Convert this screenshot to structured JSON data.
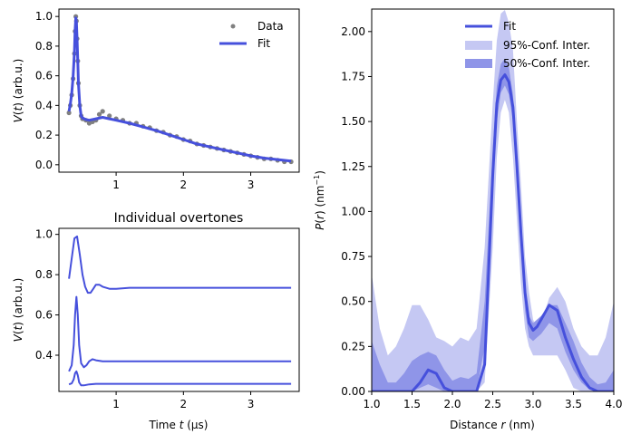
{
  "chart_data": [
    {
      "type": "scatter",
      "title": "",
      "xlabel": "",
      "ylabel": "V(t) (arb.u.)",
      "xlim": [
        0.15,
        3.72
      ],
      "ylim": [
        -0.05,
        1.05
      ],
      "xticks": [
        "1",
        "2",
        "3"
      ],
      "xtick_values": [
        1,
        2,
        3
      ],
      "yticks": [
        "0.0",
        "0.2",
        "0.4",
        "0.6",
        "0.8",
        "1.0"
      ],
      "ytick_values": [
        0.0,
        0.2,
        0.4,
        0.6,
        0.8,
        1.0
      ],
      "legend_position": "top-right",
      "series": [
        {
          "name": "Data",
          "kind": "markers",
          "color": "#808080",
          "x": [
            0.3,
            0.32,
            0.34,
            0.36,
            0.38,
            0.39,
            0.4,
            0.41,
            0.42,
            0.43,
            0.44,
            0.46,
            0.48,
            0.5,
            0.55,
            0.6,
            0.65,
            0.7,
            0.75,
            0.8,
            0.9,
            1.0,
            1.1,
            1.2,
            1.3,
            1.4,
            1.5,
            1.6,
            1.7,
            1.8,
            1.9,
            2.0,
            2.1,
            2.2,
            2.3,
            2.4,
            2.5,
            2.6,
            2.7,
            2.8,
            2.9,
            3.0,
            3.1,
            3.2,
            3.3,
            3.4,
            3.5,
            3.6
          ],
          "y": [
            0.35,
            0.4,
            0.47,
            0.58,
            0.75,
            0.9,
            1.0,
            0.97,
            0.85,
            0.7,
            0.55,
            0.4,
            0.33,
            0.31,
            0.3,
            0.28,
            0.29,
            0.3,
            0.34,
            0.36,
            0.33,
            0.31,
            0.3,
            0.28,
            0.28,
            0.26,
            0.25,
            0.23,
            0.22,
            0.2,
            0.19,
            0.17,
            0.16,
            0.14,
            0.13,
            0.12,
            0.11,
            0.1,
            0.09,
            0.08,
            0.07,
            0.06,
            0.05,
            0.04,
            0.04,
            0.03,
            0.02,
            0.02
          ]
        },
        {
          "name": "Fit",
          "kind": "line",
          "color": "#4650dc",
          "x": [
            0.3,
            0.32,
            0.34,
            0.36,
            0.38,
            0.39,
            0.4,
            0.41,
            0.42,
            0.43,
            0.44,
            0.46,
            0.48,
            0.5,
            0.55,
            0.6,
            0.7,
            0.8,
            0.9,
            1.0,
            1.2,
            1.4,
            1.6,
            1.8,
            2.0,
            2.2,
            2.4,
            2.6,
            2.8,
            3.0,
            3.2,
            3.4,
            3.6
          ],
          "y": [
            0.36,
            0.41,
            0.48,
            0.59,
            0.76,
            0.9,
            0.99,
            0.96,
            0.85,
            0.7,
            0.55,
            0.4,
            0.33,
            0.315,
            0.305,
            0.3,
            0.31,
            0.32,
            0.31,
            0.3,
            0.28,
            0.255,
            0.23,
            0.2,
            0.17,
            0.14,
            0.12,
            0.1,
            0.08,
            0.06,
            0.045,
            0.035,
            0.025
          ]
        }
      ]
    },
    {
      "type": "line",
      "title": "Individual overtones",
      "xlabel": "Time t (µs)",
      "ylabel": "V(t) (arb.u.)",
      "xlim": [
        0.15,
        3.72
      ],
      "ylim": [
        0.22,
        1.03
      ],
      "xticks": [
        "1",
        "2",
        "3"
      ],
      "xtick_values": [
        1,
        2,
        3
      ],
      "yticks": [
        "0.4",
        "0.6",
        "0.8",
        "1.0"
      ],
      "ytick_values": [
        0.4,
        0.6,
        0.8,
        1.0
      ],
      "series": [
        {
          "color": "#4650dc",
          "x": [
            0.3,
            0.34,
            0.38,
            0.42,
            0.46,
            0.5,
            0.54,
            0.58,
            0.62,
            0.66,
            0.7,
            0.75,
            0.8,
            0.9,
            1.0,
            1.2,
            1.5,
            2.0,
            2.5,
            3.0,
            3.6
          ],
          "y": [
            0.78,
            0.88,
            0.98,
            0.99,
            0.9,
            0.8,
            0.74,
            0.71,
            0.71,
            0.73,
            0.75,
            0.75,
            0.74,
            0.73,
            0.73,
            0.735,
            0.735,
            0.735,
            0.735,
            0.735,
            0.735
          ]
        },
        {
          "color": "#4650dc",
          "x": [
            0.3,
            0.34,
            0.37,
            0.39,
            0.41,
            0.43,
            0.45,
            0.48,
            0.52,
            0.56,
            0.6,
            0.65,
            0.7,
            0.8,
            1.0,
            1.5,
            2.0,
            2.5,
            3.0,
            3.6
          ],
          "y": [
            0.32,
            0.35,
            0.45,
            0.6,
            0.69,
            0.6,
            0.45,
            0.36,
            0.34,
            0.35,
            0.37,
            0.38,
            0.375,
            0.37,
            0.37,
            0.37,
            0.37,
            0.37,
            0.37,
            0.37
          ]
        },
        {
          "color": "#4650dc",
          "x": [
            0.3,
            0.34,
            0.37,
            0.39,
            0.41,
            0.43,
            0.45,
            0.48,
            0.52,
            0.6,
            0.7,
            1.0,
            1.5,
            2.0,
            2.5,
            3.0,
            3.6
          ],
          "y": [
            0.255,
            0.26,
            0.28,
            0.31,
            0.32,
            0.3,
            0.265,
            0.25,
            0.25,
            0.255,
            0.258,
            0.258,
            0.258,
            0.258,
            0.258,
            0.258,
            0.258
          ]
        }
      ]
    },
    {
      "type": "area",
      "title": "",
      "xlabel": "Distance r (nm)",
      "ylabel": "P(r) (nm⁻¹)",
      "xlim": [
        1.0,
        4.0
      ],
      "ylim": [
        0.0,
        2.125
      ],
      "xticks": [
        "1.0",
        "1.5",
        "2.0",
        "2.5",
        "3.0",
        "3.5",
        "4.0"
      ],
      "xtick_values": [
        1.0,
        1.5,
        2.0,
        2.5,
        3.0,
        3.5,
        4.0
      ],
      "yticks": [
        "0.00",
        "0.25",
        "0.50",
        "0.75",
        "1.00",
        "1.25",
        "1.50",
        "1.75",
        "2.00"
      ],
      "ytick_values": [
        0.0,
        0.25,
        0.5,
        0.75,
        1.0,
        1.25,
        1.5,
        1.75,
        2.0
      ],
      "legend_position": "top-right",
      "x": [
        1.0,
        1.1,
        1.2,
        1.3,
        1.4,
        1.5,
        1.6,
        1.7,
        1.8,
        1.9,
        2.0,
        2.1,
        2.2,
        2.3,
        2.4,
        2.5,
        2.55,
        2.6,
        2.65,
        2.7,
        2.75,
        2.8,
        2.85,
        2.9,
        2.95,
        3.0,
        3.05,
        3.1,
        3.2,
        3.3,
        3.4,
        3.5,
        3.6,
        3.7,
        3.8,
        3.9,
        4.0
      ],
      "series": [
        {
          "name": "95%-Conf. Inter.",
          "kind": "band",
          "color": "#c5c8f3",
          "lower": [
            0,
            0,
            0,
            0,
            0,
            0,
            0,
            0,
            0,
            0,
            0,
            0,
            0,
            0,
            0.05,
            0.8,
            1.3,
            1.55,
            1.62,
            1.55,
            1.3,
            0.95,
            0.6,
            0.35,
            0.25,
            0.2,
            0.2,
            0.2,
            0.2,
            0.2,
            0.12,
            0.02,
            0,
            0,
            0,
            0,
            0
          ],
          "upper": [
            0.65,
            0.35,
            0.2,
            0.25,
            0.35,
            0.48,
            0.48,
            0.4,
            0.3,
            0.28,
            0.25,
            0.3,
            0.28,
            0.35,
            0.8,
            1.6,
            1.95,
            2.1,
            2.12,
            2.05,
            1.9,
            1.5,
            1.15,
            0.75,
            0.55,
            0.4,
            0.35,
            0.38,
            0.52,
            0.58,
            0.5,
            0.35,
            0.25,
            0.2,
            0.2,
            0.3,
            0.5
          ]
        },
        {
          "name": "50%-Conf. Inter.",
          "kind": "band",
          "color": "#8f95e8",
          "lower": [
            0,
            0,
            0,
            0,
            0,
            0,
            0.02,
            0.04,
            0.02,
            0,
            0,
            0,
            0,
            0,
            0.25,
            1.1,
            1.5,
            1.66,
            1.7,
            1.65,
            1.5,
            1.15,
            0.8,
            0.45,
            0.3,
            0.28,
            0.3,
            0.32,
            0.38,
            0.35,
            0.22,
            0.12,
            0.05,
            0.01,
            0,
            0,
            0
          ],
          "upper": [
            0.28,
            0.15,
            0.05,
            0.05,
            0.1,
            0.17,
            0.2,
            0.22,
            0.2,
            0.12,
            0.06,
            0.08,
            0.07,
            0.1,
            0.5,
            1.35,
            1.7,
            1.82,
            1.85,
            1.8,
            1.65,
            1.3,
            0.95,
            0.6,
            0.42,
            0.38,
            0.4,
            0.42,
            0.48,
            0.48,
            0.38,
            0.28,
            0.16,
            0.08,
            0.04,
            0.05,
            0.12
          ]
        },
        {
          "name": "Fit",
          "kind": "line",
          "color": "#4650dc",
          "y": [
            0,
            0,
            0,
            0,
            0,
            0,
            0.05,
            0.12,
            0.1,
            0.02,
            0,
            0,
            0,
            0,
            0.15,
            1.2,
            1.6,
            1.73,
            1.76,
            1.72,
            1.58,
            1.25,
            0.88,
            0.55,
            0.38,
            0.34,
            0.36,
            0.4,
            0.48,
            0.45,
            0.3,
            0.18,
            0.08,
            0.02,
            0,
            0,
            0
          ]
        }
      ]
    }
  ]
}
